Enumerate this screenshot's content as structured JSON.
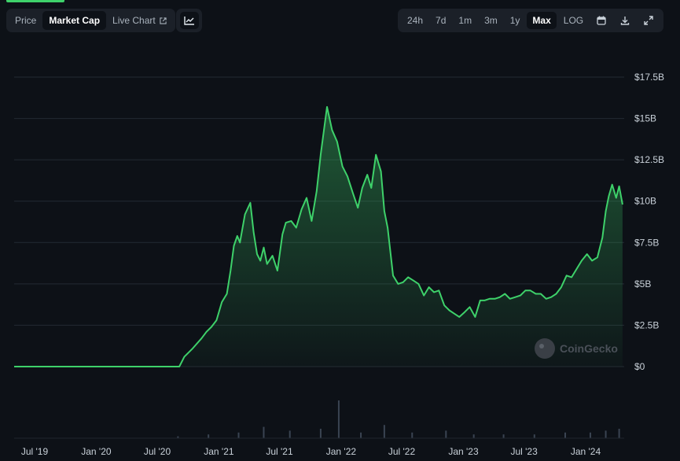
{
  "tabs": [
    {
      "label": "Price",
      "active": false
    },
    {
      "label": "Market Cap",
      "active": true
    },
    {
      "label": "Live Chart",
      "active": false
    }
  ],
  "chart_type_icon": "line-chart-icon",
  "ranges": [
    {
      "label": "24h",
      "active": false
    },
    {
      "label": "7d",
      "active": false
    },
    {
      "label": "1m",
      "active": false
    },
    {
      "label": "3m",
      "active": false
    },
    {
      "label": "1y",
      "active": false
    },
    {
      "label": "Max",
      "active": true
    },
    {
      "label": "LOG",
      "active": false
    }
  ],
  "toolbar_icons": [
    "calendar-icon",
    "download-icon",
    "fullscreen-icon"
  ],
  "watermark": "CoinGecko",
  "colors": {
    "line": "#3ed16a",
    "background": "#0d1117",
    "grid": "#232a33",
    "volume": "#3a4452"
  },
  "chart_data": {
    "type": "area",
    "series": [
      {
        "x": [
          "2019-05-01",
          "2019-08-01",
          "2019-11-01",
          "2020-02-01",
          "2020-05-01",
          "2020-08-01",
          "2020-09-05",
          "2020-09-20",
          "2020-10-15",
          "2020-11-10",
          "2020-11-25",
          "2020-12-10",
          "2020-12-25",
          "2021-01-10",
          "2021-01-25",
          "2021-02-05",
          "2021-02-15",
          "2021-02-25",
          "2021-03-05",
          "2021-03-20",
          "2021-04-05",
          "2021-04-15",
          "2021-04-25",
          "2021-05-05",
          "2021-05-15",
          "2021-05-25",
          "2021-06-10",
          "2021-06-25",
          "2021-07-10",
          "2021-07-20",
          "2021-08-05",
          "2021-08-20",
          "2021-09-05",
          "2021-09-20",
          "2021-10-05",
          "2021-10-20",
          "2021-11-01",
          "2021-11-10",
          "2021-11-20",
          "2021-12-05",
          "2021-12-20",
          "2022-01-05",
          "2022-01-20",
          "2022-02-05",
          "2022-02-20",
          "2022-03-05",
          "2022-03-20",
          "2022-04-01",
          "2022-04-15",
          "2022-04-30",
          "2022-05-10",
          "2022-05-20",
          "2022-06-05",
          "2022-06-20",
          "2022-07-05",
          "2022-07-20",
          "2022-08-05",
          "2022-08-20",
          "2022-09-05",
          "2022-09-20",
          "2022-10-05",
          "2022-10-20",
          "2022-11-05",
          "2022-11-20",
          "2022-12-05",
          "2022-12-20",
          "2023-01-05",
          "2023-01-20",
          "2023-02-05",
          "2023-02-20",
          "2023-03-05",
          "2023-03-20",
          "2023-04-05",
          "2023-04-20",
          "2023-05-05",
          "2023-05-20",
          "2023-06-05",
          "2023-06-20",
          "2023-07-05",
          "2023-07-20",
          "2023-08-05",
          "2023-08-20",
          "2023-09-05",
          "2023-09-20",
          "2023-10-05",
          "2023-10-20",
          "2023-11-05",
          "2023-11-20",
          "2023-12-05",
          "2023-12-20",
          "2024-01-05",
          "2024-01-20",
          "2024-02-05",
          "2024-02-20",
          "2024-03-01",
          "2024-03-10",
          "2024-03-20",
          "2024-04-01",
          "2024-04-10",
          "2024-04-20"
        ],
        "values": [
          0,
          0,
          0,
          0,
          0,
          0,
          0,
          0.6,
          1.1,
          1.7,
          2.1,
          2.4,
          2.8,
          3.9,
          4.4,
          5.8,
          7.3,
          7.9,
          7.5,
          9.2,
          9.9,
          8.1,
          6.8,
          6.4,
          7.2,
          6.2,
          6.7,
          5.8,
          8.0,
          8.7,
          8.8,
          8.4,
          9.5,
          10.2,
          8.8,
          10.6,
          12.8,
          14.2,
          15.7,
          14.3,
          13.6,
          12.1,
          11.5,
          10.5,
          9.6,
          10.8,
          11.6,
          10.8,
          12.8,
          11.8,
          9.4,
          8.4,
          5.5,
          5.0,
          5.1,
          5.4,
          5.2,
          5.0,
          4.3,
          4.8,
          4.5,
          4.6,
          3.7,
          3.4,
          3.2,
          3.0,
          3.3,
          3.6,
          3.0,
          4.0,
          4.0,
          4.1,
          4.1,
          4.2,
          4.4,
          4.1,
          4.2,
          4.3,
          4.6,
          4.6,
          4.4,
          4.4,
          4.1,
          4.2,
          4.4,
          4.8,
          5.5,
          5.4,
          5.9,
          6.4,
          6.8,
          6.4,
          6.6,
          7.8,
          9.4,
          10.3,
          11.0,
          10.2,
          10.9,
          9.8
        ]
      }
    ],
    "volume": {
      "x": [
        "2020-09-01",
        "2020-12-01",
        "2021-03-01",
        "2021-05-15",
        "2021-08-01",
        "2021-11-01",
        "2021-12-25",
        "2022-03-01",
        "2022-05-10",
        "2022-08-01",
        "2022-11-10",
        "2023-02-01",
        "2023-05-01",
        "2023-08-01",
        "2023-11-01",
        "2024-01-15",
        "2024-03-01",
        "2024-04-10"
      ],
      "values": [
        1,
        2,
        3,
        6,
        4,
        5,
        20,
        3,
        7,
        3,
        4,
        2,
        2,
        2,
        3,
        3,
        4,
        5
      ]
    },
    "xticks": [
      "Jul '19",
      "Jan '20",
      "Jul '20",
      "Jan '21",
      "Jul '21",
      "Jan '22",
      "Jul '22",
      "Jan '23",
      "Jul '23",
      "Jan '24"
    ],
    "xtick_dates": [
      "2019-07-01",
      "2020-01-01",
      "2020-07-01",
      "2021-01-01",
      "2021-07-01",
      "2022-01-01",
      "2022-07-01",
      "2023-01-01",
      "2023-07-01",
      "2024-01-01"
    ],
    "yticks": [
      "$0",
      "$2.5B",
      "$5B",
      "$7.5B",
      "$10B",
      "$12.5B",
      "$15B",
      "$17.5B"
    ],
    "ytick_values": [
      0,
      2.5,
      5,
      7.5,
      10,
      12.5,
      15,
      17.5
    ],
    "ylim": [
      0,
      17.5
    ],
    "xlim": [
      "2019-05-01",
      "2024-04-25"
    ],
    "grid": true,
    "xlabel": "",
    "ylabel": ""
  }
}
